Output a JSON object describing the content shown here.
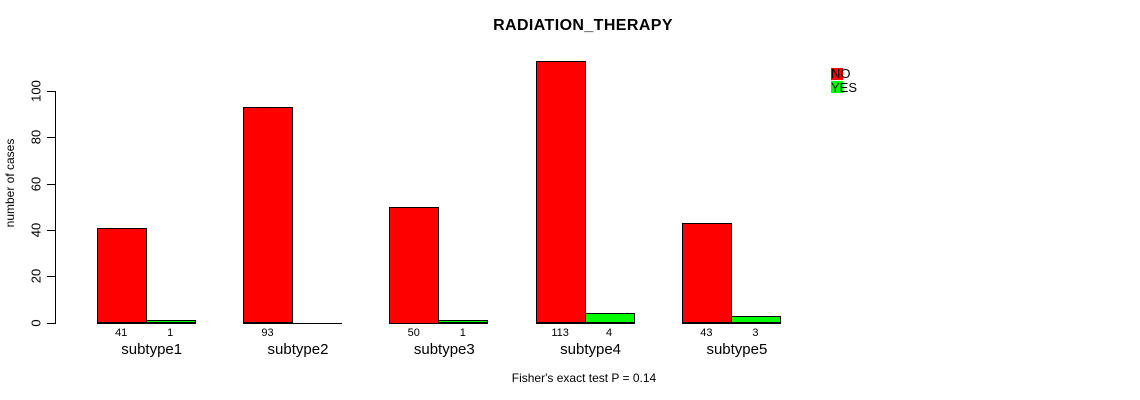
{
  "title": "RADIATION_THERAPY",
  "footnote": "Fisher's exact test P = 0.14",
  "chart_data": {
    "type": "bar",
    "title": "RADIATION_THERAPY",
    "categories": [
      "subtype1",
      "subtype2",
      "subtype3",
      "subtype4",
      "subtype5"
    ],
    "series": [
      {
        "name": "NO",
        "color": "#ff0000",
        "values": [
          41,
          93,
          50,
          113,
          43
        ]
      },
      {
        "name": "YES",
        "color": "#00ff00",
        "values": [
          1,
          0,
          1,
          4,
          3
        ]
      }
    ],
    "value_labels": [
      [
        "41",
        "93",
        "50",
        "113",
        "43"
      ],
      [
        "1",
        "",
        "1",
        "4",
        "3"
      ]
    ],
    "xlabel": "",
    "ylabel": "number of cases",
    "yticks": [
      0,
      20,
      40,
      60,
      80,
      100
    ],
    "axis_range": [
      0,
      100
    ],
    "ylim": [
      0,
      116
    ],
    "grid": false,
    "legend_position": "top-right",
    "annotation": "Fisher's exact test P = 0.14"
  },
  "legend": {
    "items": [
      {
        "label": "NO",
        "color": "#ff0000"
      },
      {
        "label": "YES",
        "color": "#00ff00"
      }
    ]
  }
}
